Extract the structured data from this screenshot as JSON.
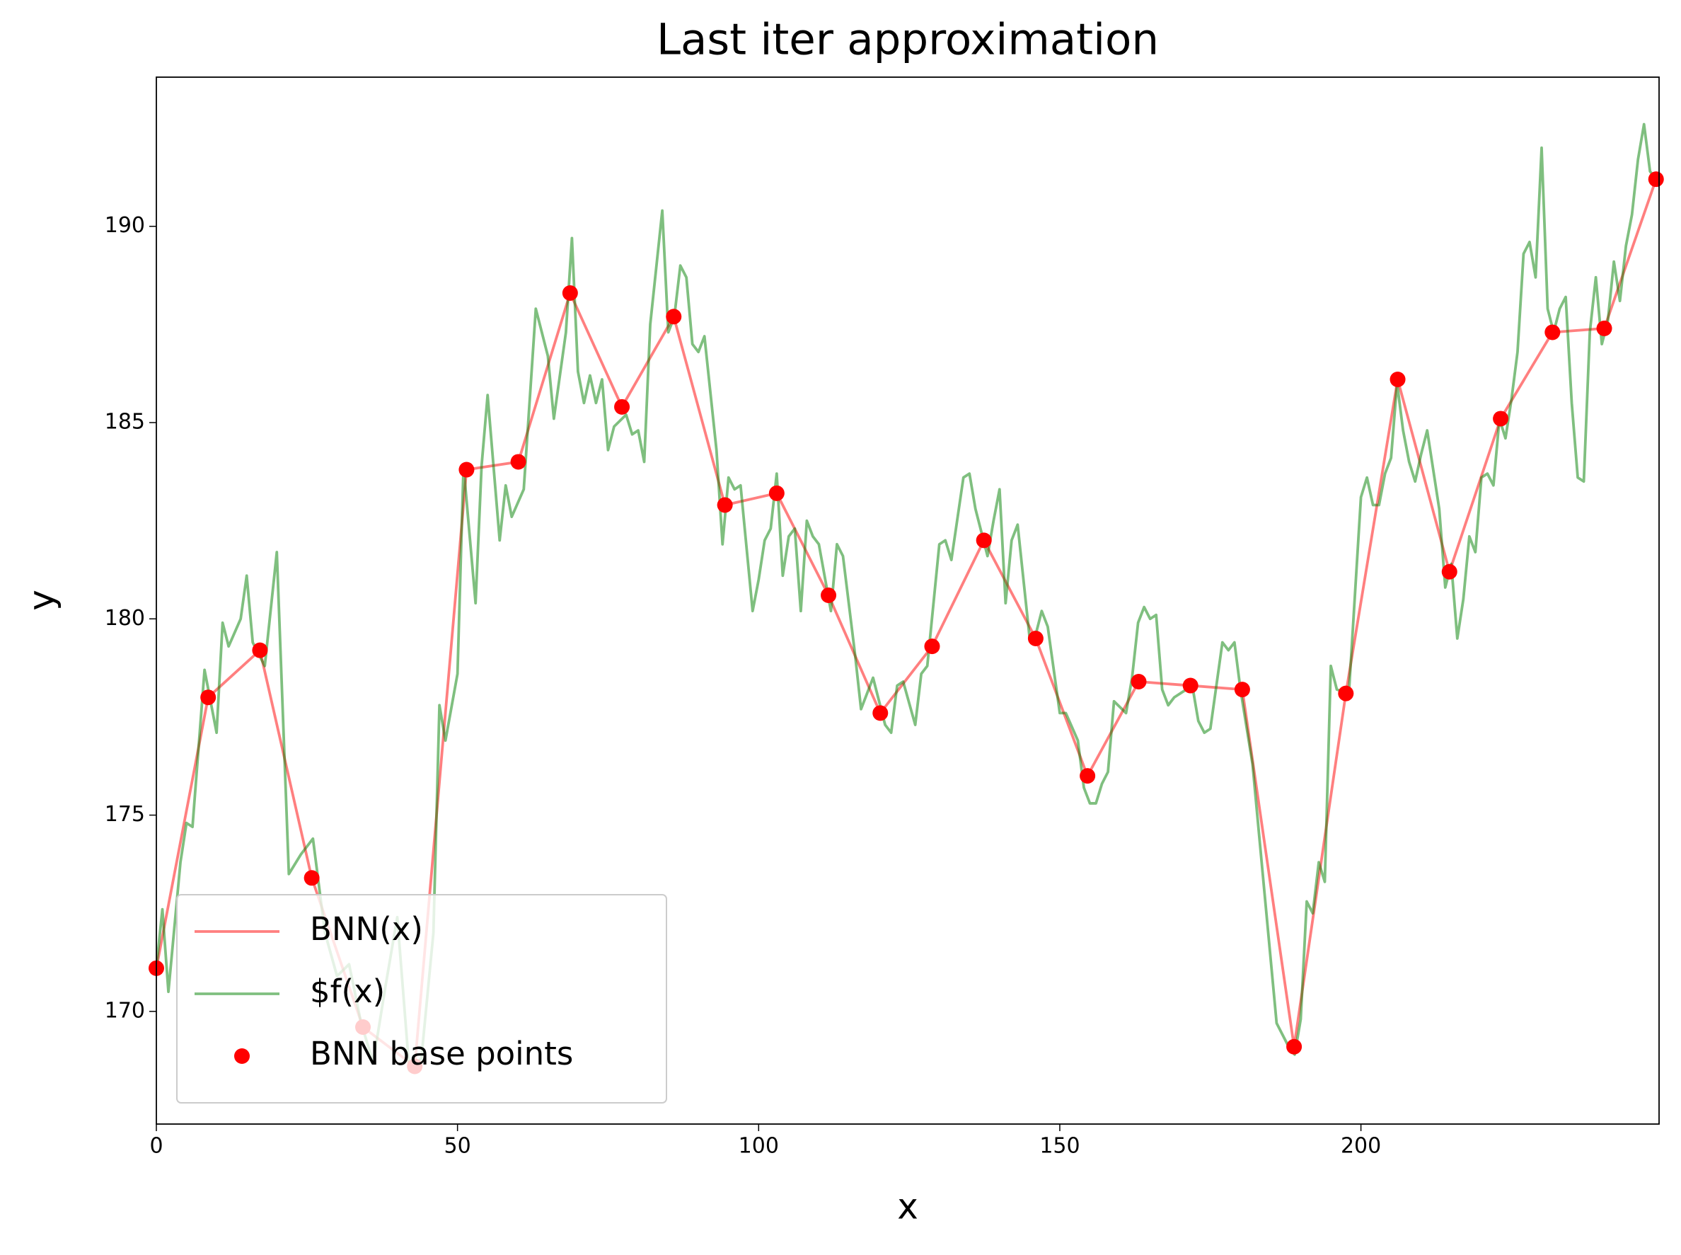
{
  "chart_data": {
    "type": "line",
    "title": "Last iter approximation",
    "x_label": "x",
    "y_label": "y",
    "xlim": [
      0,
      249.5
    ],
    "ylim": [
      167.13,
      193.8
    ],
    "xticks": [
      0,
      50,
      100,
      150,
      200
    ],
    "yticks": [
      170,
      175,
      180,
      185,
      190
    ],
    "grid": false,
    "legend": "lower left",
    "series": [
      {
        "name": "BNN(x)",
        "type": "line",
        "color": "#ff0000",
        "x": [
          0,
          8.6,
          17.2,
          25.8,
          34.3,
          42.9,
          51.5,
          60.1,
          68.7,
          77.3,
          85.9,
          94.4,
          103,
          111.6,
          120.2,
          128.8,
          137.4,
          146,
          154.6,
          163.1,
          171.7,
          180.3,
          188.9,
          197.5,
          206.1,
          214.7,
          223.2,
          231.8,
          240.4,
          249
        ],
        "values": [
          171.1,
          178.0,
          179.2,
          173.4,
          169.6,
          168.6,
          183.8,
          184.0,
          188.3,
          185.4,
          187.7,
          182.9,
          183.2,
          180.6,
          177.6,
          179.3,
          182.0,
          179.5,
          176.0,
          178.4,
          178.3,
          178.2,
          169.1,
          178.1,
          186.1,
          181.2,
          185.1,
          187.3,
          187.4,
          191.2
        ]
      },
      {
        "name": "$f(x)",
        "type": "line",
        "color": "#008000",
        "x": [
          0,
          1,
          2,
          4,
          5,
          6,
          8,
          10,
          11,
          12,
          14,
          15,
          16,
          18,
          20,
          22,
          24,
          26,
          28,
          30,
          32,
          34,
          36,
          38,
          40,
          42,
          44,
          46,
          47,
          48,
          50,
          51,
          53,
          54,
          55,
          57,
          58,
          59,
          61,
          63,
          65,
          66,
          68,
          69,
          70,
          71,
          72,
          73,
          74,
          75,
          76,
          78,
          79,
          80,
          81,
          82,
          84,
          85,
          86,
          87,
          88,
          89,
          90,
          91,
          93,
          94,
          95,
          96,
          97,
          99,
          100,
          101,
          102,
          103,
          104,
          105,
          106,
          107,
          108,
          109,
          110,
          112,
          113,
          114,
          116,
          117,
          118,
          119,
          121,
          122,
          123,
          124,
          126,
          127,
          128,
          130,
          131,
          132,
          134,
          135,
          136,
          138,
          139,
          140,
          141,
          142,
          143,
          145,
          146,
          147,
          148,
          150,
          151,
          153,
          154,
          155,
          156,
          157,
          158,
          159,
          161,
          162,
          163,
          164,
          165,
          166,
          167,
          168,
          169,
          171,
          172,
          173,
          174,
          175,
          177,
          178,
          179,
          180,
          182,
          184,
          186,
          188,
          189,
          190,
          191,
          192,
          193,
          194,
          195,
          196,
          198,
          200,
          201,
          202,
          203,
          204,
          205,
          206,
          207,
          208,
          209,
          210,
          211,
          213,
          214,
          215,
          216,
          217,
          218,
          219,
          220,
          221,
          222,
          223,
          224,
          225,
          226,
          227,
          228,
          229,
          230,
          231,
          232,
          233,
          234,
          235,
          236,
          237,
          238,
          239,
          240,
          241,
          242,
          243,
          244,
          245,
          246,
          247,
          248,
          249
        ],
        "values": [
          171.1,
          172.6,
          170.5,
          173.8,
          174.8,
          174.7,
          178.7,
          177.1,
          179.9,
          179.3,
          180,
          181.1,
          179.4,
          178.8,
          181.7,
          173.5,
          174,
          174.4,
          172,
          170.9,
          171.2,
          169.7,
          168.7,
          170.6,
          172.4,
          168.5,
          168.8,
          172,
          177.8,
          176.9,
          178.6,
          183.9,
          180.4,
          183.9,
          185.7,
          182,
          183.4,
          182.6,
          183.3,
          187.9,
          186.7,
          185.1,
          187.3,
          189.7,
          186.3,
          185.5,
          186.2,
          185.5,
          186.1,
          184.3,
          184.9,
          185.2,
          184.7,
          184.8,
          184,
          187.5,
          190.4,
          187.3,
          187.7,
          189,
          188.7,
          187,
          186.8,
          187.2,
          184.3,
          181.9,
          183.6,
          183.3,
          183.4,
          180.2,
          181,
          182,
          182.3,
          183.7,
          181.1,
          182.1,
          182.3,
          180.2,
          182.5,
          182.1,
          181.9,
          180.2,
          181.9,
          181.6,
          179.1,
          177.7,
          178.1,
          178.5,
          177.3,
          177.1,
          178.3,
          178.4,
          177.3,
          178.6,
          178.8,
          181.9,
          182,
          181.5,
          183.6,
          183.7,
          182.8,
          181.6,
          182.5,
          183.3,
          180.4,
          182,
          182.4,
          179.5,
          179.6,
          180.2,
          179.8,
          177.6,
          177.6,
          176.9,
          175.7,
          175.3,
          175.3,
          175.8,
          176.1,
          177.9,
          177.6,
          178.5,
          179.9,
          180.3,
          180,
          180.1,
          178.2,
          177.8,
          178,
          178.2,
          178.3,
          177.4,
          177.1,
          177.2,
          179.4,
          179.2,
          179.4,
          178.2,
          176.3,
          173,
          169.7,
          169.1,
          168.9,
          169.8,
          172.8,
          172.5,
          173.8,
          173.3,
          178.8,
          178.2,
          178.1,
          183.1,
          183.6,
          182.9,
          182.9,
          183.7,
          184.1,
          186,
          184.8,
          184,
          183.5,
          184.2,
          184.8,
          182.8,
          180.8,
          181.4,
          179.5,
          180.5,
          182.1,
          181.7,
          183.6,
          183.7,
          183.4,
          185.1,
          184.6,
          185.6,
          186.8,
          189.3,
          189.6,
          188.7,
          192,
          187.9,
          187.3,
          187.9,
          188.2,
          185.5,
          183.6,
          183.5,
          187.3,
          188.7,
          187,
          187.6,
          189.1,
          188.1,
          189.5,
          190.3,
          191.7,
          192.6,
          191.4,
          191.2
        ]
      },
      {
        "name": "BNN base points",
        "type": "scatter",
        "color": "#ff0000",
        "x": [
          0,
          8.6,
          17.2,
          25.8,
          34.3,
          42.9,
          51.5,
          60.1,
          68.7,
          77.3,
          85.9,
          94.4,
          103,
          111.6,
          120.2,
          128.8,
          137.4,
          146,
          154.6,
          163.1,
          171.7,
          180.3,
          188.9,
          197.5,
          206.1,
          214.7,
          223.2,
          231.8,
          240.4,
          249
        ],
        "values": [
          171.1,
          178.0,
          179.2,
          173.4,
          169.6,
          168.6,
          183.8,
          184.0,
          188.3,
          185.4,
          187.7,
          182.9,
          183.2,
          180.6,
          177.6,
          179.3,
          182.0,
          179.5,
          176.0,
          178.4,
          178.3,
          178.2,
          169.1,
          178.1,
          186.1,
          181.2,
          185.1,
          187.3,
          187.4,
          191.2
        ]
      }
    ]
  }
}
